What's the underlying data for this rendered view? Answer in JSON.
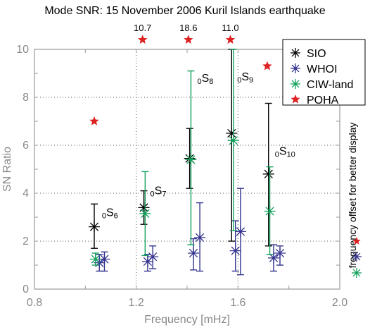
{
  "chart_data": {
    "type": "scatter",
    "title": "Mode SNR: 15 November 2006 Kuril Islands earthquake",
    "xlabel": "Frequency [mHz]",
    "ylabel": "SN Ratio",
    "xlim": [
      0.8,
      2.0
    ],
    "ylim": [
      0,
      10
    ],
    "xticks": [
      "0.8",
      "1.2",
      "1.6",
      "2.0"
    ],
    "yticks": [
      "0",
      "2",
      "4",
      "6",
      "8",
      "10"
    ],
    "grid": true,
    "legend_position": "top-right",
    "side_note": "frequency offset for better display",
    "colors": {
      "SIO": "#000000",
      "WHOI": "#33338f",
      "CIW-land": "#12a05a",
      "POHA": "#dd2222",
      "grid": "#555555",
      "axis_text": "#888888"
    },
    "series": [
      {
        "name": "SIO",
        "marker": "asterisk",
        "errorbars": true,
        "points": [
          {
            "x": 1.035,
            "y": 2.6,
            "lo": 1.7,
            "hi": 3.55
          },
          {
            "x": 1.23,
            "y": 3.4,
            "lo": 2.7,
            "hi": 4.1
          },
          {
            "x": 1.41,
            "y": 5.45,
            "lo": 4.2,
            "hi": 6.7
          },
          {
            "x": 1.575,
            "y": 6.5,
            "lo": 2.0,
            "hi": 10.0
          },
          {
            "x": 1.72,
            "y": 4.8,
            "lo": 1.8,
            "hi": 7.75
          }
        ]
      },
      {
        "name": "WHOI",
        "marker": "asterisk",
        "errorbars": true,
        "points": [
          {
            "x": 1.055,
            "y": 1.1,
            "lo": 0.75,
            "hi": 1.45
          },
          {
            "x": 1.075,
            "y": 1.25,
            "lo": 0.75,
            "hi": 1.55
          },
          {
            "x": 1.245,
            "y": 1.15,
            "lo": 0.75,
            "hi": 1.45
          },
          {
            "x": 1.265,
            "y": 1.35,
            "lo": 0.85,
            "hi": 1.8
          },
          {
            "x": 1.425,
            "y": 1.5,
            "lo": 0.8,
            "hi": 2.1
          },
          {
            "x": 1.45,
            "y": 2.15,
            "lo": 0.75,
            "hi": 3.6
          },
          {
            "x": 1.59,
            "y": 1.6,
            "lo": 0.75,
            "hi": 2.85
          },
          {
            "x": 1.61,
            "y": 2.4,
            "lo": 0.6,
            "hi": 4.2
          },
          {
            "x": 1.74,
            "y": 1.3,
            "lo": 0.75,
            "hi": 1.85
          },
          {
            "x": 1.765,
            "y": 1.5,
            "lo": 1.0,
            "hi": 1.8
          }
        ]
      },
      {
        "name": "CIW-land",
        "marker": "asterisk",
        "errorbars": true,
        "points": [
          {
            "x": 1.04,
            "y": 1.25,
            "lo": 1.0,
            "hi": 1.5
          },
          {
            "x": 1.235,
            "y": 3.15,
            "lo": 1.4,
            "hi": 4.9
          },
          {
            "x": 1.415,
            "y": 5.4,
            "lo": 1.85,
            "hi": 9.1
          },
          {
            "x": 1.582,
            "y": 6.2,
            "lo": 2.45,
            "hi": 10.0
          },
          {
            "x": 1.725,
            "y": 3.25,
            "lo": 1.45,
            "hi": 5.1
          }
        ]
      },
      {
        "name": "POHA",
        "marker": "star",
        "errorbars": false,
        "points": [
          {
            "x": 1.035,
            "y": 7.0
          },
          {
            "x": 1.225,
            "y": 10.4,
            "label": "10.7"
          },
          {
            "x": 1.405,
            "y": 10.4,
            "label": "18.6"
          },
          {
            "x": 1.57,
            "y": 10.4,
            "label": "11.0"
          },
          {
            "x": 1.715,
            "y": 9.3
          }
        ]
      }
    ],
    "annotations": [
      {
        "base": "0",
        "sub": "S",
        "mode": "6",
        "x": 1.065,
        "y": 3.05
      },
      {
        "base": "0",
        "sub": "S",
        "mode": "7",
        "x": 1.255,
        "y": 3.95
      },
      {
        "base": "0",
        "sub": "S",
        "mode": "8",
        "x": 1.44,
        "y": 8.65
      },
      {
        "base": "0",
        "sub": "S",
        "mode": "9",
        "x": 1.597,
        "y": 8.7
      },
      {
        "base": "0",
        "sub": "S",
        "mode": "10",
        "x": 1.745,
        "y": 5.6
      }
    ]
  }
}
